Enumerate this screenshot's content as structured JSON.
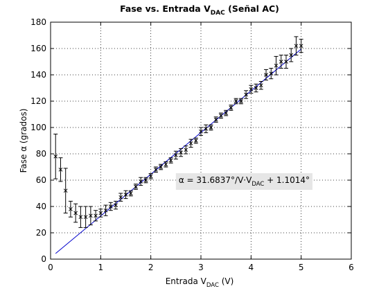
{
  "chart_data": {
    "type": "scatter",
    "title": "Fase vs. Entrada V",
    "title_sub": "DAC",
    "title_suffix": " (Señal AC)",
    "xlabel": "Entrada V",
    "xlabel_sub": "DAC",
    "xlabel_suffix": " (V)",
    "ylabel": "Fase α (grados)",
    "xlim": [
      0,
      6
    ],
    "ylim": [
      0,
      180
    ],
    "xticks": [
      0,
      1,
      2,
      3,
      4,
      5,
      6
    ],
    "yticks": [
      0,
      20,
      40,
      60,
      80,
      100,
      120,
      140,
      160,
      180
    ],
    "grid": true,
    "annotation": {
      "text_prefix": "α = 31.6837°/V·V",
      "text_sub": "DAC",
      "text_suffix": " + 1.1014°",
      "x": 2.5,
      "y": 60
    },
    "fit": {
      "slope": 31.6837,
      "intercept": 1.1014,
      "x_range": [
        0.1,
        5
      ],
      "color": "#0000cc"
    },
    "series": [
      {
        "marker": "x",
        "color": "#000000",
        "x": [
          0.1,
          0.2,
          0.3,
          0.4,
          0.5,
          0.6,
          0.7,
          0.8,
          0.9,
          1.0,
          1.1,
          1.2,
          1.3,
          1.4,
          1.5,
          1.6,
          1.7,
          1.8,
          1.9,
          2.0,
          2.1,
          2.2,
          2.3,
          2.4,
          2.5,
          2.6,
          2.7,
          2.8,
          2.9,
          3.0,
          3.1,
          3.2,
          3.3,
          3.4,
          3.5,
          3.6,
          3.7,
          3.8,
          3.9,
          4.0,
          4.1,
          4.2,
          4.3,
          4.4,
          4.5,
          4.6,
          4.7,
          4.8,
          4.9,
          5.0
        ],
        "y": [
          78,
          68,
          52,
          38,
          35,
          32,
          32,
          33,
          33,
          35,
          37,
          40,
          41,
          47,
          49,
          50,
          55,
          59,
          60,
          63,
          68,
          70,
          72,
          75,
          79,
          81,
          83,
          88,
          90,
          97,
          99,
          100,
          106,
          109,
          111,
          115,
          120,
          120,
          125,
          129,
          130,
          132,
          140,
          141,
          147,
          150,
          150,
          155,
          162,
          162
        ],
        "err": [
          17,
          9,
          17,
          6,
          7,
          8,
          8,
          7,
          4,
          3,
          4,
          3,
          3,
          3,
          3,
          2,
          2,
          3,
          2,
          2,
          2,
          2,
          2,
          2,
          3,
          3,
          3,
          3,
          2,
          3,
          3,
          2,
          2,
          2,
          2,
          2,
          2,
          2,
          3,
          3,
          3,
          3,
          4,
          4,
          7,
          5,
          5,
          5,
          7,
          5
        ]
      }
    ]
  }
}
